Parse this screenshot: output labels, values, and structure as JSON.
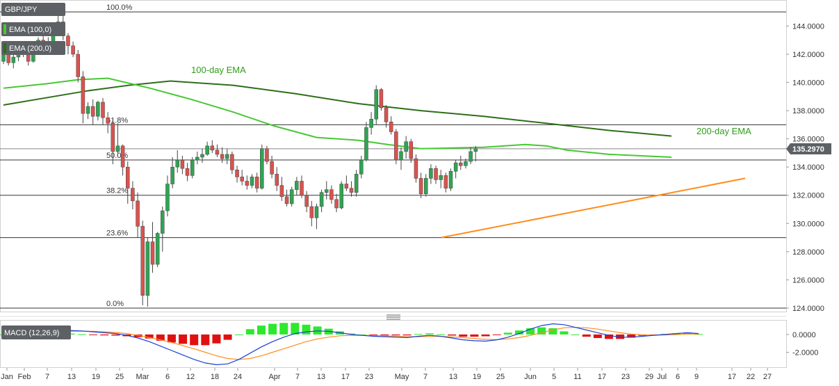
{
  "chart_data": [
    {
      "type": "candlestick",
      "symbol": "GBP/JPY",
      "indicators": [
        "EMA (100,0)",
        "EMA (200,0)"
      ],
      "ylim": [
        123.8,
        145.6
      ],
      "price_ticks": [
        "144.0000",
        "142.0000",
        "140.0000",
        "138.0000",
        "136.0000",
        "134.0000",
        "132.0000",
        "130.0000",
        "128.0000",
        "126.0000",
        "124.0000"
      ],
      "price_tick_values": [
        144,
        142,
        140,
        138,
        136,
        134,
        132,
        130,
        128,
        126,
        124
      ],
      "x_ticks": [
        "Jan",
        "Feb",
        "7",
        "13",
        "19",
        "25",
        "Mar",
        "6",
        "12",
        "18",
        "24",
        "Apr",
        "7",
        "13",
        "17",
        "23",
        "May",
        "7",
        "13",
        "19",
        "25",
        "Jun",
        "5",
        "11",
        "17",
        "23",
        "29",
        "Jul",
        "6",
        "9",
        "17",
        "22",
        "27"
      ],
      "last_price": "135.2970",
      "fib_levels": [
        {
          "label": "100.0%",
          "value": 145.0
        },
        {
          "label": "61.8%",
          "value": 137.0
        },
        {
          "label": "50.0%",
          "value": 134.5
        },
        {
          "label": "38.2%",
          "value": 132.0
        },
        {
          "label": "23.6%",
          "value": 129.0
        },
        {
          "label": "0.0%",
          "value": 124.0
        }
      ],
      "annotations": [
        {
          "text": "100-day EMA"
        },
        {
          "text": "200-day EMA"
        }
      ],
      "support_line": {
        "from": [
          10,
          129.0
        ],
        "to": [
          53,
          133.2
        ]
      },
      "candles": [
        [
          141.5,
          142.3,
          141.3,
          142.1
        ],
        [
          142.1,
          142.6,
          141.2,
          141.4
        ],
        [
          141.4,
          142.0,
          141.0,
          141.8
        ],
        [
          141.8,
          142.5,
          141.5,
          142.2
        ],
        [
          142.2,
          142.6,
          141.8,
          142.0
        ],
        [
          142.0,
          142.3,
          141.2,
          141.5
        ],
        [
          141.5,
          142.8,
          141.4,
          142.6
        ],
        [
          142.6,
          143.2,
          142.3,
          143.0
        ],
        [
          143.0,
          143.4,
          142.6,
          142.8
        ],
        [
          142.8,
          143.2,
          142.2,
          142.4
        ],
        [
          142.4,
          143.8,
          142.3,
          143.6
        ],
        [
          143.6,
          144.8,
          143.4,
          144.3
        ],
        [
          144.3,
          144.8,
          143.0,
          143.3
        ],
        [
          143.3,
          143.5,
          142.0,
          142.6
        ],
        [
          142.6,
          142.9,
          141.8,
          142.0
        ],
        [
          142.0,
          142.3,
          140.0,
          140.4
        ],
        [
          140.4,
          140.8,
          137.1,
          137.8
        ],
        [
          137.8,
          138.6,
          137.4,
          138.3
        ],
        [
          138.3,
          138.8,
          137.0,
          137.6
        ],
        [
          137.6,
          138.7,
          137.3,
          138.6
        ],
        [
          138.6,
          138.9,
          137.0,
          137.5
        ],
        [
          137.5,
          137.9,
          136.4,
          137.1
        ],
        [
          137.1,
          137.4,
          134.2,
          135.1
        ],
        [
          135.1,
          137.1,
          134.8,
          135.5
        ],
        [
          135.5,
          135.6,
          133.4,
          134.0
        ],
        [
          134.0,
          134.4,
          131.4,
          132.5
        ],
        [
          132.5,
          133.0,
          131.0,
          131.6
        ],
        [
          131.6,
          132.2,
          129.0,
          129.8
        ],
        [
          129.8,
          130.2,
          124.2,
          124.9
        ],
        [
          124.9,
          129.0,
          124.1,
          128.7
        ],
        [
          128.7,
          130.1,
          126.5,
          127.1
        ],
        [
          127.1,
          129.4,
          126.9,
          129.3
        ],
        [
          129.3,
          131.2,
          128.0,
          130.9
        ],
        [
          130.9,
          133.4,
          130.5,
          132.8
        ],
        [
          132.8,
          134.7,
          132.5,
          134.0
        ],
        [
          134.0,
          135.2,
          133.6,
          134.5
        ],
        [
          134.5,
          134.8,
          133.5,
          133.9
        ],
        [
          133.9,
          134.3,
          133.0,
          133.4
        ],
        [
          133.4,
          134.7,
          133.2,
          134.5
        ],
        [
          134.5,
          135.1,
          134.2,
          134.7
        ],
        [
          134.7,
          135.3,
          134.3,
          134.9
        ],
        [
          134.9,
          135.8,
          134.8,
          135.5
        ],
        [
          135.5,
          135.9,
          135.0,
          135.2
        ],
        [
          135.2,
          135.6,
          134.7,
          134.9
        ],
        [
          134.9,
          135.4,
          134.3,
          134.6
        ],
        [
          134.6,
          135.3,
          134.2,
          134.9
        ],
        [
          134.9,
          135.1,
          133.5,
          133.8
        ],
        [
          133.8,
          134.1,
          132.9,
          133.3
        ],
        [
          133.3,
          133.8,
          132.7,
          133.0
        ],
        [
          133.0,
          133.4,
          132.4,
          132.7
        ],
        [
          132.7,
          133.5,
          132.5,
          133.3
        ],
        [
          133.3,
          133.6,
          132.2,
          132.5
        ],
        [
          132.5,
          135.6,
          132.4,
          135.3
        ],
        [
          135.3,
          135.5,
          134.2,
          134.4
        ],
        [
          134.4,
          134.8,
          133.2,
          133.5
        ],
        [
          133.5,
          134.0,
          132.3,
          132.7
        ],
        [
          132.7,
          133.3,
          131.6,
          131.9
        ],
        [
          131.9,
          132.4,
          131.2,
          131.4
        ],
        [
          131.4,
          132.6,
          131.2,
          132.4
        ],
        [
          132.4,
          133.3,
          132.0,
          133.0
        ],
        [
          133.0,
          133.4,
          131.8,
          132.0
        ],
        [
          132.0,
          132.3,
          130.8,
          131.2
        ],
        [
          131.2,
          131.6,
          129.8,
          130.4
        ],
        [
          130.4,
          131.4,
          129.6,
          131.2
        ],
        [
          131.2,
          132.4,
          130.8,
          132.2
        ],
        [
          132.2,
          133.0,
          131.7,
          132.4
        ],
        [
          132.4,
          132.7,
          131.4,
          131.7
        ],
        [
          131.7,
          132.1,
          130.8,
          131.1
        ],
        [
          131.1,
          133.0,
          131.0,
          132.8
        ],
        [
          132.8,
          133.4,
          132.3,
          132.5
        ],
        [
          132.5,
          133.0,
          131.9,
          132.2
        ],
        [
          132.2,
          133.8,
          131.9,
          133.5
        ],
        [
          133.5,
          134.8,
          133.2,
          134.5
        ],
        [
          134.5,
          137.2,
          134.4,
          136.8
        ],
        [
          136.8,
          137.9,
          136.3,
          137.4
        ],
        [
          137.4,
          139.8,
          137.0,
          139.5
        ],
        [
          139.5,
          139.6,
          138.0,
          138.2
        ],
        [
          138.2,
          138.4,
          136.8,
          137.2
        ],
        [
          137.2,
          137.6,
          136.3,
          136.5
        ],
        [
          136.5,
          136.7,
          134.2,
          134.5
        ],
        [
          134.5,
          135.4,
          133.8,
          135.1
        ],
        [
          135.1,
          136.2,
          134.6,
          135.8
        ],
        [
          135.8,
          136.0,
          134.3,
          134.6
        ],
        [
          134.6,
          134.9,
          132.9,
          133.2
        ],
        [
          133.2,
          133.6,
          131.8,
          132.1
        ],
        [
          132.1,
          133.5,
          131.9,
          133.2
        ],
        [
          133.2,
          134.2,
          132.8,
          133.9
        ],
        [
          133.9,
          134.1,
          132.8,
          133.1
        ],
        [
          133.1,
          133.8,
          132.5,
          133.4
        ],
        [
          133.4,
          133.6,
          132.2,
          132.5
        ],
        [
          132.5,
          133.9,
          132.3,
          133.7
        ],
        [
          133.7,
          134.5,
          133.2,
          134.3
        ],
        [
          134.3,
          134.8,
          133.8,
          134.1
        ],
        [
          134.1,
          134.6,
          133.9,
          134.4
        ],
        [
          134.4,
          135.4,
          134.2,
          135.1
        ],
        [
          135.1,
          135.5,
          134.4,
          135.3
        ]
      ],
      "ema100": [
        [
          0,
          139.6
        ],
        [
          10,
          139.9
        ],
        [
          18,
          140.2
        ],
        [
          25,
          140.3
        ],
        [
          35,
          139.6
        ],
        [
          45,
          138.8
        ],
        [
          55,
          137.9
        ],
        [
          65,
          136.9
        ],
        [
          75,
          136.1
        ],
        [
          85,
          135.9
        ],
        [
          92,
          135.6
        ],
        [
          100,
          135.3
        ],
        [
          115,
          135.4
        ],
        [
          125,
          135.6
        ],
        [
          130,
          135.5
        ],
        [
          135,
          135.2
        ],
        [
          145,
          134.9
        ],
        [
          160,
          134.7
        ]
      ],
      "ema200": [
        [
          0,
          138.4
        ],
        [
          10,
          138.9
        ],
        [
          20,
          139.4
        ],
        [
          30,
          139.8
        ],
        [
          40,
          140.1
        ],
        [
          55,
          139.8
        ],
        [
          70,
          139.2
        ],
        [
          85,
          138.5
        ],
        [
          100,
          138.0
        ],
        [
          115,
          137.6
        ],
        [
          130,
          137.1
        ],
        [
          145,
          136.6
        ],
        [
          160,
          136.2
        ]
      ],
      "macd_label": "MACD (12,26,9)",
      "macd_ticks": [
        "0.0000",
        "-2.0000"
      ],
      "macd_tick_values": [
        0,
        -2
      ],
      "macd_ylim": [
        -3.6,
        1.4
      ],
      "macd_line": [
        0.1,
        0.15,
        0.2,
        0.3,
        0.35,
        0.4,
        0.45,
        0.4,
        0.3,
        0.2,
        0.1,
        -0.1,
        -0.4,
        -0.8,
        -1.3,
        -1.8,
        -2.3,
        -2.8,
        -3.2,
        -3.4,
        -3.3,
        -2.8,
        -2.1,
        -1.4,
        -0.8,
        -0.3,
        0.1,
        0.3,
        0.4,
        0.35,
        0.2,
        0.0,
        -0.1,
        -0.2,
        -0.25,
        -0.3,
        -0.35,
        -0.2,
        -0.1,
        -0.2,
        -0.4,
        -0.6,
        -0.7,
        -0.75,
        -0.6,
        -0.3,
        0.1,
        0.6,
        1.0,
        1.2,
        1.1,
        0.8,
        0.5,
        0.2,
        -0.1,
        -0.3,
        -0.3,
        -0.2,
        -0.1,
        0.0,
        0.1,
        0.2,
        0.1
      ],
      "macd_signal": [
        0.1,
        0.12,
        0.15,
        0.2,
        0.25,
        0.3,
        0.35,
        0.37,
        0.35,
        0.3,
        0.22,
        0.1,
        -0.1,
        -0.35,
        -0.6,
        -0.9,
        -1.25,
        -1.6,
        -2.0,
        -2.4,
        -2.7,
        -2.8,
        -2.7,
        -2.4,
        -2.0,
        -1.6,
        -1.2,
        -0.8,
        -0.5,
        -0.3,
        -0.15,
        -0.1,
        -0.1,
        -0.12,
        -0.15,
        -0.2,
        -0.25,
        -0.25,
        -0.22,
        -0.22,
        -0.28,
        -0.35,
        -0.45,
        -0.55,
        -0.58,
        -0.5,
        -0.35,
        -0.1,
        0.2,
        0.5,
        0.75,
        0.8,
        0.75,
        0.6,
        0.4,
        0.2,
        0.05,
        -0.05,
        -0.08,
        -0.06,
        -0.02,
        0.05,
        0.05
      ]
    }
  ]
}
